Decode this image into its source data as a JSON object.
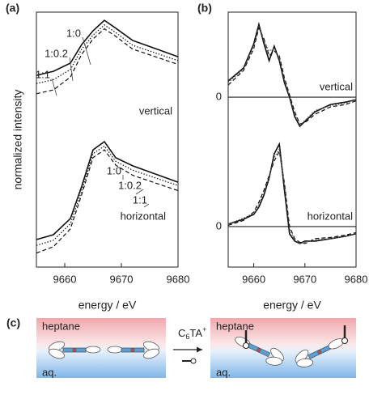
{
  "chart_data": [
    {
      "type": "line",
      "panel_label": "(a)",
      "xlabel": "energy / eV",
      "ylabel": "normalized intensity",
      "x": [
        9655,
        9658,
        9661,
        9663,
        9665,
        9667,
        9669,
        9672,
        9676,
        9680
      ],
      "xlim": [
        9655,
        9680
      ],
      "xticks": [
        9660,
        9670,
        9680
      ],
      "ylim": [
        0,
        10
      ],
      "grid": false,
      "annotations": [
        "vertical",
        "horizontal"
      ],
      "series": [
        {
          "name": "1:0",
          "color": "#111111",
          "dash": "solid",
          "values": [
            7.52,
            7.68,
            8.0,
            8.73,
            9.27,
            9.68,
            9.37,
            8.89,
            8.57,
            8.25
          ]
        },
        {
          "name": "1:0.2",
          "color": "#111111",
          "dash": "dotted",
          "values": [
            7.2,
            7.35,
            7.75,
            8.55,
            9.1,
            9.5,
            9.2,
            8.7,
            8.4,
            8.1
          ]
        },
        {
          "name": "1:1",
          "color": "#111111",
          "dash": "dashed",
          "values": [
            6.8,
            6.95,
            7.45,
            8.35,
            8.95,
            9.35,
            9.05,
            8.55,
            8.25,
            7.95
          ]
        },
        {
          "name": "1:0",
          "color": "#111111",
          "dash": "solid",
          "values": [
            1.08,
            1.27,
            1.9,
            3.17,
            4.6,
            4.92,
            4.29,
            3.97,
            3.65,
            3.33
          ]
        },
        {
          "name": "1:0.2",
          "color": "#111111",
          "dash": "dotted",
          "values": [
            0.85,
            1.05,
            1.7,
            3.0,
            4.45,
            4.75,
            4.15,
            3.8,
            3.5,
            3.2
          ]
        },
        {
          "name": "1:1",
          "color": "#111111",
          "dash": "dashed",
          "values": [
            0.55,
            0.8,
            1.5,
            2.85,
            4.3,
            4.6,
            4.0,
            3.6,
            3.3,
            3.0
          ]
        }
      ]
    },
    {
      "type": "line",
      "panel_label": "(b)",
      "annotation": "vertical",
      "x": [
        9655,
        9658,
        9660,
        9661,
        9662,
        9663,
        9664,
        9665,
        9666,
        9667,
        9668,
        9669,
        9670,
        9672,
        9675,
        9678,
        9680
      ],
      "xlim": [
        9655,
        9680
      ],
      "ylim": [
        -1.33,
        3.5
      ],
      "yticks": [
        0
      ],
      "grid": true,
      "series": [
        {
          "color": "#111111",
          "dash": "solid",
          "values": [
            0.67,
            1.2,
            2.2,
            3.0,
            2.2,
            1.5,
            2.1,
            1.5,
            0.6,
            0.0,
            -0.8,
            -1.2,
            -1.0,
            -0.6,
            -0.3,
            -0.2,
            -0.1
          ]
        },
        {
          "color": "#111111",
          "dash": "dashed",
          "values": [
            0.5,
            1.1,
            2.0,
            2.85,
            2.4,
            1.7,
            1.9,
            1.7,
            0.8,
            0.1,
            -0.6,
            -1.1,
            -1.05,
            -0.7,
            -0.4,
            -0.3,
            -0.15
          ]
        },
        {
          "color": "#555555",
          "dash": "dotted",
          "values": [
            0.6,
            1.15,
            2.1,
            2.9,
            2.3,
            1.9,
            2.0,
            1.6,
            0.7,
            0.05,
            -0.7,
            -1.15,
            -0.95,
            -0.55,
            -0.35,
            -0.25,
            -0.1
          ]
        }
      ]
    },
    {
      "type": "line",
      "xlabel": "energy / eV",
      "annotation": "horizontal",
      "x": [
        9655,
        9658,
        9660,
        9661,
        9662,
        9663,
        9664,
        9665,
        9666,
        9667,
        9668,
        9669,
        9670,
        9672,
        9675,
        9678,
        9680
      ],
      "xlim": [
        9655,
        9680
      ],
      "xticks": [
        9660,
        9670,
        9680
      ],
      "ylim": [
        -1.67,
        4
      ],
      "yticks": [
        0
      ],
      "grid": true,
      "series": [
        {
          "color": "#111111",
          "dash": "solid",
          "values": [
            0.1,
            0.3,
            0.5,
            0.8,
            1.3,
            2.0,
            3.0,
            3.4,
            1.5,
            -0.3,
            -0.6,
            -0.7,
            -0.6,
            -0.6,
            -0.5,
            -0.4,
            -0.3
          ]
        },
        {
          "color": "#111111",
          "dash": "dashed",
          "values": [
            0.05,
            0.25,
            0.6,
            1.0,
            1.5,
            2.1,
            2.7,
            3.1,
            1.8,
            0.0,
            -0.5,
            -0.65,
            -0.7,
            -0.5,
            -0.45,
            -0.35,
            -0.25
          ]
        },
        {
          "color": "#555555",
          "dash": "dotted",
          "values": [
            0.1,
            0.35,
            0.55,
            0.9,
            1.4,
            2.05,
            2.85,
            3.2,
            1.7,
            -0.1,
            -0.55,
            -0.7,
            -0.65,
            -0.55,
            -0.5,
            -0.4,
            -0.3
          ]
        }
      ]
    }
  ],
  "diagram": {
    "panel_label": "(c)",
    "left": {
      "top": "heptane",
      "bottom": "aq."
    },
    "right": {
      "top": "heptane",
      "bottom": "aq."
    },
    "reagent": {
      "base": "C",
      "subscript": "6",
      "rest": "TA",
      "superscript": "+"
    }
  }
}
